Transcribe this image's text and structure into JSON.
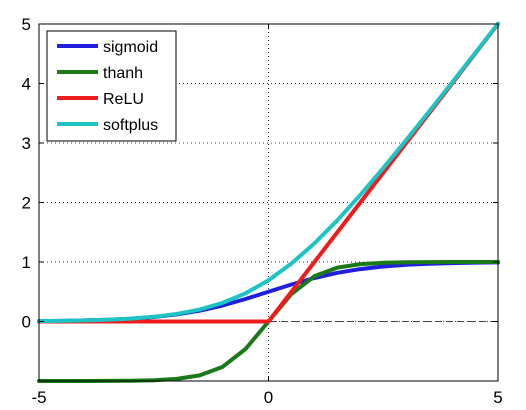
{
  "chart_data": {
    "type": "line",
    "xlim": [
      -5,
      5
    ],
    "ylim": [
      -1,
      5
    ],
    "xticks": [
      -5,
      0,
      5
    ],
    "yticks": [
      0,
      1,
      2,
      3,
      4,
      5
    ],
    "grid": "dotted",
    "reference_line": {
      "y": 0,
      "style": "dashed"
    },
    "legend": {
      "position": "top-left"
    },
    "x": [
      -5,
      -4.5,
      -4,
      -3.5,
      -3,
      -2.5,
      -2,
      -1.5,
      -1,
      -0.5,
      0,
      0.5,
      1,
      1.5,
      2,
      2.5,
      3,
      3.5,
      4,
      4.5,
      5
    ],
    "series": [
      {
        "name": "sigmoid",
        "color": "#1f1fe0",
        "values": [
          0.007,
          0.011,
          0.018,
          0.029,
          0.047,
          0.076,
          0.119,
          0.182,
          0.269,
          0.378,
          0.5,
          0.622,
          0.731,
          0.818,
          0.881,
          0.924,
          0.953,
          0.971,
          0.982,
          0.989,
          0.993
        ]
      },
      {
        "name": "thanh",
        "color": "#1a7a1a",
        "values": [
          -1.0,
          -1.0,
          -0.999,
          -0.998,
          -0.995,
          -0.987,
          -0.964,
          -0.905,
          -0.762,
          -0.462,
          0.0,
          0.462,
          0.762,
          0.905,
          0.964,
          0.987,
          0.995,
          0.998,
          0.999,
          1.0,
          1.0
        ]
      },
      {
        "name": "ReLU",
        "color": "#ee1c1c",
        "values": [
          0,
          0,
          0,
          0,
          0,
          0,
          0,
          0,
          0,
          0,
          0,
          0.5,
          1,
          1.5,
          2,
          2.5,
          3,
          3.5,
          4,
          4.5,
          5
        ]
      },
      {
        "name": "softplus",
        "color": "#1cc4c4",
        "values": [
          0.007,
          0.011,
          0.018,
          0.03,
          0.049,
          0.079,
          0.127,
          0.201,
          0.313,
          0.474,
          0.693,
          0.974,
          1.313,
          1.701,
          2.127,
          2.579,
          3.049,
          3.53,
          4.018,
          4.511,
          5.007
        ]
      }
    ]
  }
}
